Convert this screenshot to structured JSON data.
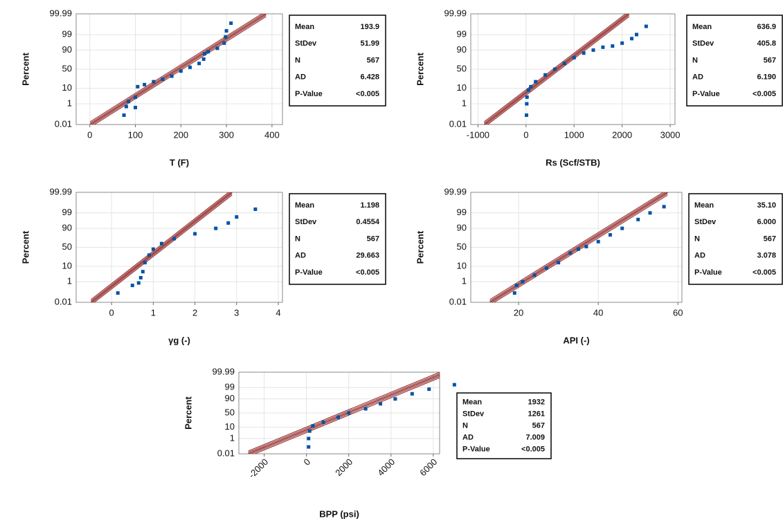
{
  "chart_data": [
    {
      "type": "probability",
      "xlabel": "T (F)",
      "ylabel": "Percent",
      "yscale": "probit",
      "grid": true,
      "color": "#0054a6",
      "fit_color": "#8b1a1a",
      "x": [
        75,
        80,
        85,
        100,
        100,
        105,
        120,
        140,
        160,
        180,
        200,
        220,
        240,
        250,
        252,
        260,
        280,
        295,
        298,
        300,
        310
      ],
      "y": [
        0.1,
        0.6,
        1.5,
        0.5,
        3,
        12,
        15,
        20,
        25,
        32,
        45,
        55,
        65,
        75,
        85,
        88,
        92,
        96,
        98.5,
        99.5,
        99.9
      ],
      "xlim": [
        -30,
        423
      ],
      "xticks": [
        0,
        100,
        200,
        300,
        400
      ],
      "ylim": [
        0.01,
        99.99
      ],
      "yticks": [
        0.01,
        1,
        10,
        50,
        90,
        99,
        99.99
      ],
      "stats": {
        "names": [
          "Mean",
          "StDev",
          "N",
          "AD",
          "P-Value"
        ],
        "values": [
          193.9,
          51.99,
          567,
          6.428,
          null
        ],
        "value_labels": [
          "193.9",
          "51.99",
          "567",
          "6.428",
          "<0.005"
        ]
      }
    },
    {
      "type": "probability",
      "xlabel": "Rs (Scf/STB)",
      "ylabel": "Percent",
      "yscale": "probit",
      "grid": true,
      "color": "#0054a6",
      "fit_color": "#8b1a1a",
      "x": [
        10,
        15,
        20,
        50,
        100,
        200,
        400,
        600,
        800,
        1000,
        1200,
        1400,
        1600,
        1800,
        2000,
        2200,
        2300,
        2500
      ],
      "y": [
        0.1,
        1,
        3,
        8,
        12,
        20,
        35,
        50,
        65,
        78,
        86,
        90,
        93,
        94,
        96,
        98,
        99,
        99.8
      ],
      "xlim": [
        -1150,
        3100
      ],
      "xticks": [
        -1000,
        0,
        1000,
        2000,
        3000
      ],
      "ylim": [
        0.01,
        99.99
      ],
      "yticks": [
        0.01,
        1,
        10,
        50,
        90,
        99,
        99.99
      ],
      "stats": {
        "names": [
          "Mean",
          "StDev",
          "N",
          "AD",
          "P-Value"
        ],
        "values": [
          636.9,
          405.8,
          567,
          6.19,
          null
        ],
        "value_labels": [
          "636.9",
          "405.8",
          "567",
          "6.190",
          "<0.005"
        ]
      }
    },
    {
      "type": "probability",
      "xlabel": "γg (-)",
      "ylabel": "Percent",
      "yscale": "probit",
      "grid": true,
      "color": "#0054a6",
      "fit_color": "#8b1a1a",
      "x": [
        0.15,
        0.5,
        0.65,
        0.7,
        0.75,
        0.8,
        0.9,
        1.0,
        1.2,
        1.5,
        2.0,
        2.5,
        2.8,
        3.0,
        3.45
      ],
      "y": [
        0.1,
        0.5,
        0.8,
        2,
        5,
        15,
        30,
        45,
        60,
        72,
        82,
        90,
        95,
        98,
        99.5
      ],
      "xlim": [
        -0.85,
        4.1
      ],
      "xticks": [
        0,
        1,
        2,
        3,
        4
      ],
      "ylim": [
        0.01,
        99.99
      ],
      "yticks": [
        0.01,
        1,
        10,
        50,
        90,
        99,
        99.99
      ],
      "stats": {
        "names": [
          "Mean",
          "StDev",
          "N",
          "AD",
          "P-Value"
        ],
        "values": [
          1.198,
          0.4554,
          567,
          29.663,
          null
        ],
        "value_labels": [
          "1.198",
          "0.4554",
          "567",
          "29.663",
          "<0.005"
        ]
      }
    },
    {
      "type": "probability",
      "xlabel": "API (-)",
      "ylabel": "Percent",
      "yscale": "probit",
      "grid": true,
      "color": "#0054a6",
      "fit_color": "#8b1a1a",
      "x": [
        19,
        19.5,
        21,
        24,
        27,
        30,
        33,
        35,
        37,
        40,
        43,
        46,
        50,
        53,
        56.5
      ],
      "y": [
        0.1,
        0.5,
        1,
        3,
        8,
        15,
        35,
        45,
        52,
        65,
        80,
        90,
        97,
        99,
        99.7
      ],
      "xlim": [
        8,
        61
      ],
      "xticks": [
        20,
        40,
        60
      ],
      "ylim": [
        0.01,
        99.99
      ],
      "yticks": [
        0.01,
        1,
        10,
        50,
        90,
        99,
        99.99
      ],
      "stats": {
        "names": [
          "Mean",
          "StDev",
          "N",
          "AD",
          "P-Value"
        ],
        "values": [
          35.1,
          6,
          567,
          3.078,
          null
        ],
        "value_labels": [
          "35.10",
          "6.000",
          "567",
          "3.078",
          "<0.005"
        ]
      }
    },
    {
      "type": "probability",
      "xlabel": "BPP (psi)",
      "ylabel": "Percent",
      "yscale": "probit",
      "grid": true,
      "color": "#0054a6",
      "fit_color": "#8b1a1a",
      "xtick_rotation": 45,
      "x": [
        100,
        100,
        150,
        300,
        800,
        1500,
        2000,
        2800,
        3500,
        4200,
        5000,
        5800,
        7000
      ],
      "y": [
        0.1,
        1,
        5,
        12,
        20,
        35,
        50,
        65,
        80,
        90,
        96,
        98.5,
        99.5
      ],
      "xlim": [
        -3200,
        6300
      ],
      "xticks": [
        -2000,
        0,
        2000,
        4000,
        6000
      ],
      "ylim": [
        0.01,
        99.99
      ],
      "yticks": [
        0.01,
        1,
        10,
        50,
        90,
        99,
        99.99
      ],
      "stats": {
        "names": [
          "Mean",
          "StDev",
          "N",
          "AD",
          "P-Value"
        ],
        "values": [
          1932,
          1261,
          567,
          7.009,
          null
        ],
        "value_labels": [
          "1932",
          "1261",
          "567",
          "7.009",
          "<0.005"
        ]
      }
    }
  ]
}
